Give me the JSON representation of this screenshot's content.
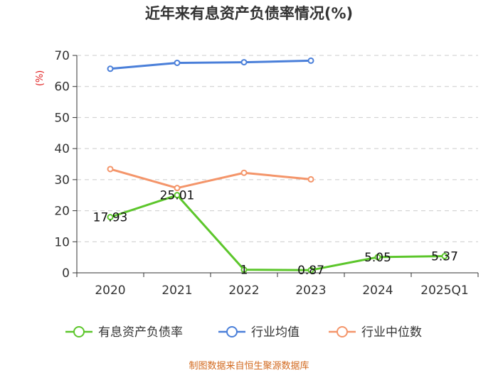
{
  "chart_data": {
    "type": "line",
    "title": "近年来有息资产负债率情况(%)",
    "ylabel": "(%)",
    "xlabel": "",
    "categories": [
      "2020",
      "2021",
      "2022",
      "2023",
      "2024",
      "2025Q1"
    ],
    "ylim": [
      0,
      70
    ],
    "yticks": [
      0,
      10,
      20,
      30,
      40,
      50,
      60,
      70
    ],
    "grid": true,
    "legend_position": "bottom",
    "series": [
      {
        "name": "有息资产负债率",
        "color": "#5cc62b",
        "values": [
          17.93,
          25.01,
          1,
          0.87,
          5.05,
          5.37
        ],
        "labels": [
          "17.93",
          "25.01",
          "1",
          "0.87",
          "5.05",
          "5.37"
        ]
      },
      {
        "name": "行业均值",
        "color": "#4a7fd9",
        "values": [
          65.7,
          67.6,
          67.8,
          68.3,
          null,
          null
        ]
      },
      {
        "name": "行业中位数",
        "color": "#f4956a",
        "values": [
          33.4,
          27.3,
          32.2,
          30.1,
          null,
          null
        ]
      }
    ]
  },
  "source": "制图数据来自恒生聚源数据库"
}
